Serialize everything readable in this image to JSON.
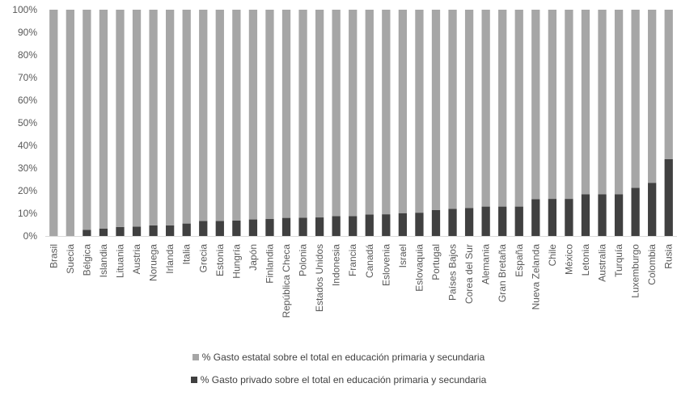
{
  "chart_data": {
    "type": "bar",
    "stacked": true,
    "categories": [
      "Brasil",
      "Suecia",
      "Bélgica",
      "Islandia",
      "Lituania",
      "Austria",
      "Noruega",
      "Irlanda",
      "Italia",
      "Grecia",
      "Estonia",
      "Hungría",
      "Japón",
      "Finlandia",
      "República Checa",
      "Polonia",
      "Estados Unidos",
      "Indonesia",
      "Francia",
      "Canadá",
      "Eslovenia",
      "Israel",
      "Eslovaquia",
      "Portugal",
      "Países Bajos",
      "Corea del Sur",
      "Alemania",
      "Gran Bretaña",
      "España",
      "Nueva Zelanda",
      "Chile",
      "México",
      "Letonia",
      "Australia",
      "Turquía",
      "Luxemburgo",
      "Colombia",
      "Rusia"
    ],
    "series": [
      {
        "name": "% Gasto privado sobre el total en educación primaria y secundaria",
        "color": "#404040",
        "values": [
          0,
          0,
          2.7,
          3.3,
          4.0,
          4.1,
          4.7,
          4.7,
          5.5,
          6.6,
          6.6,
          6.8,
          7.3,
          7.5,
          8.0,
          8.1,
          8.2,
          8.8,
          8.8,
          9.5,
          9.6,
          10.1,
          10.3,
          11.5,
          12.0,
          12.4,
          13.0,
          13.0,
          13.0,
          16.3,
          16.4,
          16.4,
          18.4,
          18.4,
          18.4,
          21.3,
          23.5,
          34.0
        ]
      },
      {
        "name": "% Gasto estatal sobre el total en educación primaria y secundaria",
        "color": "#a6a6a6",
        "values": [
          100,
          100,
          97.3,
          96.7,
          96.0,
          95.9,
          95.3,
          95.3,
          94.5,
          93.4,
          93.4,
          93.2,
          92.7,
          92.5,
          92.0,
          91.9,
          91.8,
          91.2,
          91.2,
          90.5,
          90.4,
          89.9,
          89.7,
          88.5,
          88.0,
          87.6,
          87.0,
          87.0,
          87.0,
          83.7,
          83.6,
          83.6,
          81.6,
          81.6,
          81.6,
          78.7,
          76.5,
          66.0
        ]
      }
    ],
    "yticks": [
      "0%",
      "10%",
      "20%",
      "30%",
      "40%",
      "50%",
      "60%",
      "70%",
      "80%",
      "90%",
      "100%"
    ],
    "ylim": [
      0,
      100
    ],
    "grid": false,
    "legend_position": "bottom",
    "legend_order": [
      1,
      0
    ],
    "title": "",
    "xlabel": "",
    "ylabel": ""
  }
}
